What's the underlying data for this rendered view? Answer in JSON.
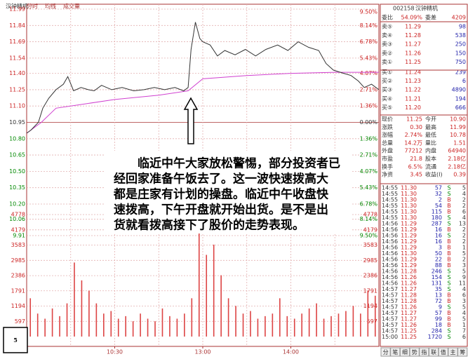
{
  "header": {
    "items": [
      "汉钟精机",
      "分时",
      "均线",
      "成交量"
    ]
  },
  "chart": {
    "xlim": [
      0,
      240
    ],
    "ylim": [
      9.91,
      11.99
    ],
    "vol_ylim": [
      0,
      4778
    ],
    "price_ticks": [
      {
        "value": 11.99,
        "label": "11.99"
      },
      {
        "value": 11.84,
        "label": "11.84"
      },
      {
        "value": 11.69,
        "label": "11.69"
      },
      {
        "value": 11.54,
        "label": "11.54"
      },
      {
        "value": 11.4,
        "label": "11.40"
      },
      {
        "value": 11.25,
        "label": "11.25"
      },
      {
        "value": 11.1,
        "label": "11.10"
      },
      {
        "value": 10.95,
        "label": "10.95"
      },
      {
        "value": 10.8,
        "label": "10.80"
      },
      {
        "value": 10.65,
        "label": "10.65"
      },
      {
        "value": 10.5,
        "label": "10.50"
      },
      {
        "value": 10.35,
        "label": "10.35"
      },
      {
        "value": 10.2,
        "label": "10.20"
      },
      {
        "value": 10.06,
        "label": "10.06"
      },
      {
        "value": 9.91,
        "label": "9.91"
      }
    ],
    "pct_labels": [
      "9.50%",
      "8.14%",
      "6.78%",
      "5.43%",
      "4.07%",
      "2.71%",
      "1.36%",
      "0.00%",
      "1.36%",
      "2.71%",
      "4.07%",
      "5.43%",
      "6.78%",
      "8.14%",
      "9.50%"
    ],
    "vol_ticks": [
      4778,
      4179,
      3583,
      2985,
      2386,
      1791,
      1194,
      597
    ],
    "time_ticks": [
      {
        "value": 60,
        "label": "10:30"
      },
      {
        "value": 120,
        "label": "13:00"
      },
      {
        "value": 180,
        "label": "14:00"
      }
    ],
    "price": {
      "x": [
        0,
        3,
        8,
        11,
        15,
        20,
        25,
        28,
        32,
        37,
        42,
        46,
        51,
        58,
        65,
        73,
        80,
        87,
        94,
        101,
        107,
        110,
        112,
        115,
        118,
        120,
        125,
        130,
        135,
        142,
        149,
        156,
        163,
        171,
        178,
        185,
        192,
        199,
        204,
        209,
        216,
        221,
        226,
        230,
        235,
        240
      ],
      "values": [
        10.85,
        10.88,
        10.95,
        11.08,
        11.17,
        11.25,
        11.3,
        11.37,
        11.24,
        11.27,
        11.25,
        11.24,
        11.29,
        11.25,
        11.27,
        11.24,
        11.25,
        11.27,
        11.25,
        11.27,
        11.24,
        11.27,
        11.62,
        11.87,
        11.72,
        11.69,
        11.66,
        11.56,
        11.61,
        11.57,
        11.62,
        11.56,
        11.62,
        11.66,
        11.61,
        11.69,
        11.64,
        11.61,
        11.49,
        11.43,
        11.4,
        11.38,
        11.33,
        11.27,
        11.3,
        11.25
      ]
    },
    "avg": {
      "x": [
        0,
        10,
        20,
        40,
        60,
        90,
        110,
        120,
        150,
        180,
        210,
        240
      ],
      "values": [
        10.85,
        10.95,
        11.08,
        11.12,
        11.16,
        11.2,
        11.24,
        11.35,
        11.38,
        11.4,
        11.41,
        11.41
      ]
    },
    "volume": [
      1500,
      900,
      700,
      1100,
      800,
      1300,
      2900,
      2200,
      1800,
      1300,
      900,
      1000,
      700,
      800,
      600,
      900,
      700,
      600,
      1100,
      800,
      700,
      900,
      1500,
      4200,
      3200,
      3600,
      2400,
      1500,
      1200,
      900,
      1000,
      700,
      800,
      900,
      1500,
      800,
      700,
      900,
      1100,
      1300,
      700,
      800,
      900,
      1000,
      1200,
      900,
      1800,
      1600
    ]
  },
  "annotation": {
    "lines": [
      "临近中午大家放松警惕，部分投资者已",
      "经回家准备午饭去了。这一波快速拨高大",
      "都是庄家有计划的操盘。临近中午收盘快",
      "速拨高，下午开盘就开始出货。是不是出",
      "货就看拨高接下了股价的走势表现。"
    ]
  },
  "figure_number": "5",
  "quote": {
    "code": "002158",
    "name": "汉钟精机",
    "ratio": [
      "委比",
      "54.09%",
      "委差",
      "4209"
    ],
    "book": [
      [
        "卖⑤",
        "11.29",
        "98"
      ],
      [
        "卖④",
        "11.28",
        "538"
      ],
      [
        "卖③",
        "11.27",
        "250"
      ],
      [
        "卖②",
        "11.26",
        "150"
      ],
      [
        "卖①",
        "11.25",
        "750"
      ],
      [
        "买①",
        "11.24",
        "239"
      ],
      [
        "买②",
        "11.23",
        "6"
      ],
      [
        "买③",
        "11.22",
        "4890"
      ],
      [
        "买④",
        "11.21",
        "194"
      ],
      [
        "买⑤",
        "11.20",
        "666"
      ]
    ],
    "stats": [
      [
        "现价",
        "11.25",
        "今开",
        "10.90"
      ],
      [
        "涨跌",
        "0.30",
        "最高",
        "11.99"
      ],
      [
        "涨幅",
        "2.74%",
        "最低",
        "10.78"
      ],
      [
        "总量",
        "14.2万",
        "量比",
        "1.51"
      ],
      [
        "外盘",
        "77212",
        "内盘",
        "64940"
      ],
      [
        "市盈",
        "21.8",
        "股本",
        "2.18亿"
      ],
      [
        "换手",
        "6.5%",
        "流通",
        "2.18亿"
      ],
      [
        "净资",
        "3.45",
        "收益(I)",
        "0.39"
      ]
    ]
  },
  "trades": [
    [
      "14:55",
      "11.30",
      "57",
      "S",
      "5"
    ],
    [
      "14:55",
      "11.30",
      "32",
      "S",
      "4"
    ],
    [
      "14:55",
      "11.30",
      "2",
      "B",
      "2"
    ],
    [
      "14:55",
      "11.30",
      "54",
      "B",
      "2"
    ],
    [
      "14:55",
      "11.30",
      "115",
      "B",
      "6"
    ],
    [
      "14:55",
      "11.30",
      "180",
      "S",
      "4"
    ],
    [
      "14:56",
      "11.29",
      "287",
      "S",
      "13"
    ],
    [
      "14:56",
      "11.29",
      "16",
      "B",
      "2"
    ],
    [
      "14:56",
      "11.29",
      "16",
      "S",
      "2"
    ],
    [
      "14:56",
      "11.29",
      "16",
      "B",
      "2"
    ],
    [
      "14:56",
      "11.29",
      "3",
      "B",
      "1"
    ],
    [
      "14:56",
      "11.30",
      "50",
      "B",
      "5"
    ],
    [
      "14:56",
      "11.29",
      "22",
      "B",
      "2"
    ],
    [
      "14:56",
      "11.29",
      "88",
      "B",
      "3"
    ],
    [
      "14:56",
      "11.28",
      "246",
      "S",
      "5"
    ],
    [
      "14:56",
      "11.26",
      "154",
      "S",
      "9"
    ],
    [
      "14:56",
      "11.26",
      "131",
      "S",
      "11"
    ],
    [
      "14:57",
      "11.27",
      "35",
      "S",
      "4"
    ],
    [
      "14:57",
      "11.28",
      "13",
      "B",
      "6"
    ],
    [
      "14:57",
      "11.28",
      "72",
      "B",
      "3"
    ],
    [
      "14:57",
      "11.26",
      "9",
      "S",
      "5"
    ],
    [
      "14:57",
      "11.27",
      "57",
      "B",
      "4"
    ],
    [
      "14:57",
      "11.27",
      "99",
      "B",
      "5"
    ],
    [
      "14:57",
      "11.26",
      "18",
      "B",
      "1"
    ],
    [
      "14:57",
      "11.25",
      "284",
      "S",
      "7"
    ],
    [
      "15:00",
      "11.25",
      "1720",
      "S",
      "6"
    ]
  ],
  "tabs": [
    "分",
    "笔",
    "细",
    "势",
    "指",
    "联",
    "值",
    "主",
    "筹"
  ]
}
